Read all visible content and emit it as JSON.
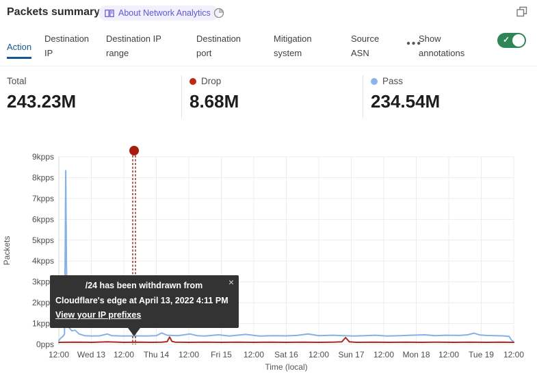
{
  "header": {
    "title": "Packets summary",
    "badge": {
      "icon": "book-icon",
      "label": "About Network Analytics"
    },
    "time_icon": "clock-icon",
    "expand_icon": "expand-icon"
  },
  "tabs": {
    "items": [
      {
        "label": "Action",
        "active": true
      },
      {
        "label": "Destination IP",
        "active": false
      },
      {
        "label": "Destination IP range",
        "active": false
      },
      {
        "label": "Destination port",
        "active": false
      },
      {
        "label": "Mitigation system",
        "active": false
      },
      {
        "label": "Source ASN",
        "active": false
      }
    ],
    "more_label": "●●●",
    "active_color": "#16578f"
  },
  "annotations_toggle": {
    "label": "Show annotations",
    "state": "on",
    "check": "✓",
    "on_color": "#2f8555"
  },
  "stats": {
    "total": {
      "label": "Total",
      "value": "243.23M"
    },
    "drop": {
      "label": "Drop",
      "value": "8.68M",
      "dot_color": "#bf2719"
    },
    "pass": {
      "label": "Pass",
      "value": "234.54M",
      "dot_color": "#8ab5ea"
    }
  },
  "chart_data": {
    "type": "line",
    "ylabel": "Packets",
    "xlabel": "Time (local)",
    "unit": "kpps",
    "ylim_kpps": [
      0,
      9
    ],
    "y_ticks": [
      "0pps",
      "1kpps",
      "2kpps",
      "3kpps",
      "4kpps",
      "5kpps",
      "6kpps",
      "7kpps",
      "8kpps",
      "9kpps"
    ],
    "x_ticks": [
      "12:00",
      "Wed 13",
      "12:00",
      "Thu 14",
      "12:00",
      "Fri 15",
      "12:00",
      "Sat 16",
      "12:00",
      "Sun 17",
      "12:00",
      "Mon 18",
      "12:00",
      "Tue 19",
      "12:00"
    ],
    "x_range_hours": [
      0,
      168
    ],
    "grid": true,
    "series": [
      {
        "name": "Pass",
        "color": "#84b2e8",
        "points": [
          [
            0,
            0.18
          ],
          [
            0.8,
            0.32
          ],
          [
            1.5,
            0.38
          ],
          [
            2.1,
            0.5
          ],
          [
            2.35,
            4.5
          ],
          [
            2.55,
            8.34
          ],
          [
            2.8,
            4.0
          ],
          [
            3.1,
            1.05
          ],
          [
            3.8,
            0.8
          ],
          [
            4.8,
            0.65
          ],
          [
            6,
            0.68
          ],
          [
            7.5,
            0.5
          ],
          [
            9.5,
            0.42
          ],
          [
            12,
            0.4
          ],
          [
            15,
            0.41
          ],
          [
            17.9,
            0.5
          ],
          [
            19.5,
            0.42
          ],
          [
            24,
            0.4
          ],
          [
            28,
            0.41
          ],
          [
            32,
            0.4
          ],
          [
            36,
            0.42
          ],
          [
            38,
            0.55
          ],
          [
            40,
            0.44
          ],
          [
            44,
            0.42
          ],
          [
            48.5,
            0.5
          ],
          [
            51,
            0.42
          ],
          [
            54,
            0.4
          ],
          [
            59,
            0.46
          ],
          [
            63,
            0.4
          ],
          [
            69,
            0.48
          ],
          [
            74,
            0.4
          ],
          [
            79,
            0.42
          ],
          [
            84,
            0.41
          ],
          [
            88,
            0.43
          ],
          [
            92,
            0.5
          ],
          [
            96,
            0.42
          ],
          [
            101,
            0.44
          ],
          [
            105,
            0.42
          ],
          [
            109,
            0.4
          ],
          [
            113,
            0.42
          ],
          [
            117,
            0.44
          ],
          [
            121,
            0.4
          ],
          [
            126,
            0.42
          ],
          [
            130,
            0.44
          ],
          [
            135,
            0.46
          ],
          [
            139,
            0.42
          ],
          [
            143,
            0.44
          ],
          [
            148,
            0.43
          ],
          [
            151,
            0.46
          ],
          [
            153.3,
            0.54
          ],
          [
            155.5,
            0.45
          ],
          [
            158,
            0.43
          ],
          [
            161,
            0.42
          ],
          [
            164,
            0.41
          ],
          [
            166.3,
            0.38
          ],
          [
            167.2,
            0.2
          ],
          [
            168,
            0.12
          ]
        ]
      },
      {
        "name": "Drop",
        "color": "#ab2a1d",
        "points": [
          [
            0,
            0.1
          ],
          [
            6,
            0.11
          ],
          [
            12,
            0.1
          ],
          [
            18,
            0.12
          ],
          [
            24,
            0.1
          ],
          [
            30,
            0.11
          ],
          [
            34,
            0.1
          ],
          [
            38,
            0.11
          ],
          [
            40,
            0.13
          ],
          [
            40.9,
            0.35
          ],
          [
            41.8,
            0.14
          ],
          [
            43,
            0.11
          ],
          [
            48,
            0.1
          ],
          [
            54,
            0.11
          ],
          [
            60,
            0.1
          ],
          [
            66,
            0.11
          ],
          [
            72,
            0.1
          ],
          [
            78,
            0.11
          ],
          [
            84,
            0.1
          ],
          [
            90,
            0.11
          ],
          [
            96,
            0.1
          ],
          [
            101,
            0.11
          ],
          [
            104.5,
            0.12
          ],
          [
            105.9,
            0.33
          ],
          [
            107.3,
            0.12
          ],
          [
            110,
            0.1
          ],
          [
            116,
            0.11
          ],
          [
            122,
            0.1
          ],
          [
            128,
            0.11
          ],
          [
            134,
            0.1
          ],
          [
            140,
            0.11
          ],
          [
            146,
            0.1
          ],
          [
            152,
            0.11
          ],
          [
            158,
            0.1
          ],
          [
            163,
            0.11
          ],
          [
            168,
            0.1
          ]
        ]
      }
    ],
    "annotation": {
      "x_hours": 27.8,
      "line_color": "#8e1f10",
      "dot_color": "#a81c0c",
      "tooltip": {
        "line1": "/24 has been withdrawn from",
        "line2": "Cloudflare's edge at April 13, 2022 4:11 PM",
        "link": "View your IP prefixes",
        "close_icon": "×"
      }
    }
  }
}
